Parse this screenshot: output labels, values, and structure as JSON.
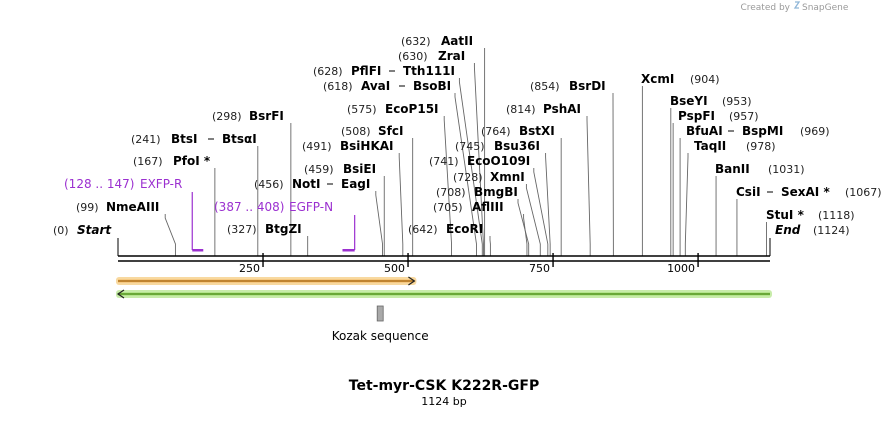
{
  "credit": {
    "text": "Created by",
    "brand": "SnapGene"
  },
  "map": {
    "title": "Tet-myr-CSK K222R-GFP",
    "length_label": "1124 bp",
    "total_bp": 1124,
    "ticks": [
      {
        "bp": 250,
        "label": "250"
      },
      {
        "bp": 500,
        "label": "500"
      },
      {
        "bp": 750,
        "label": "750"
      },
      {
        "bp": 1000,
        "label": "1000"
      }
    ]
  },
  "sites": [
    {
      "id": "start",
      "pos": 0,
      "pos_label": "(0)",
      "name": "Start",
      "italic": true
    },
    {
      "id": "nmeaiii",
      "pos": 99,
      "pos_label": "(99)",
      "name": "NmeAIII"
    },
    {
      "id": "pfoi",
      "pos": 167,
      "pos_label": "(167)",
      "name": "PfoI *"
    },
    {
      "id": "btsi",
      "pos": 241,
      "pos_label": "(241)",
      "name": "BtsI",
      "name2": "BtsαI"
    },
    {
      "id": "bsrfi",
      "pos": 298,
      "pos_label": "(298)",
      "name": "BsrFI"
    },
    {
      "id": "btgzi",
      "pos": 327,
      "pos_label": "(327)",
      "name": "BtgZI"
    },
    {
      "id": "noti",
      "pos": 456,
      "pos_label": "(456)",
      "name": "NotI",
      "name2": "EagI"
    },
    {
      "id": "bsiei",
      "pos": 459,
      "pos_label": "(459)",
      "name": "BsiEI"
    },
    {
      "id": "bsihkai",
      "pos": 491,
      "pos_label": "(491)",
      "name": "BsiHKAI"
    },
    {
      "id": "sfci",
      "pos": 508,
      "pos_label": "(508)",
      "name": "SfcI"
    },
    {
      "id": "ecop15i",
      "pos": 575,
      "pos_label": "(575)",
      "name": "EcoP15I"
    },
    {
      "id": "avai",
      "pos": 618,
      "pos_label": "(618)",
      "name": "AvaI",
      "name2": "BsoBI"
    },
    {
      "id": "pflfi",
      "pos": 628,
      "pos_label": "(628)",
      "name": "PflFI",
      "name2": "Tth111I"
    },
    {
      "id": "zrai",
      "pos": 630,
      "pos_label": "(630)",
      "name": "ZraI"
    },
    {
      "id": "aatii",
      "pos": 632,
      "pos_label": "(632)",
      "name": "AatII"
    },
    {
      "id": "ecori",
      "pos": 642,
      "pos_label": "(642)",
      "name": "EcoRI"
    },
    {
      "id": "afliii",
      "pos": 705,
      "pos_label": "(705)",
      "name": "AflIII"
    },
    {
      "id": "bmgbi",
      "pos": 708,
      "pos_label": "(708)",
      "name": "BmgBI"
    },
    {
      "id": "xmni",
      "pos": 728,
      "pos_label": "(728)",
      "name": "XmnI"
    },
    {
      "id": "ecoo109i",
      "pos": 741,
      "pos_label": "(741)",
      "name": "EcoO109I"
    },
    {
      "id": "bsu36i",
      "pos": 745,
      "pos_label": "(745)",
      "name": "Bsu36I"
    },
    {
      "id": "bstxi",
      "pos": 764,
      "pos_label": "(764)",
      "name": "BstXI"
    },
    {
      "id": "pshai",
      "pos": 814,
      "pos_label": "(814)",
      "name": "PshAI"
    },
    {
      "id": "bsrdi",
      "pos": 854,
      "pos_label": "(854)",
      "name": "BsrDI"
    },
    {
      "id": "xcmi",
      "pos": 904,
      "pos_label": "(904)",
      "name": "XcmI"
    },
    {
      "id": "bseyi",
      "pos": 953,
      "pos_label": "(953)",
      "name": "BseYI"
    },
    {
      "id": "pspfi",
      "pos": 957,
      "pos_label": "(957)",
      "name": "PspFI"
    },
    {
      "id": "bfuai",
      "pos": 969,
      "pos_label": "(969)",
      "name": "BfuAI",
      "name2": "BspMI"
    },
    {
      "id": "taqii",
      "pos": 978,
      "pos_label": "(978)",
      "name": "TaqII"
    },
    {
      "id": "banii",
      "pos": 1031,
      "pos_label": "(1031)",
      "name": "BanII"
    },
    {
      "id": "csii",
      "pos": 1067,
      "pos_label": "(1067)",
      "name": "CsiI",
      "name2": "SexAI *"
    },
    {
      "id": "stui",
      "pos": 1118,
      "pos_label": "(1118)",
      "name": "StuI *"
    },
    {
      "id": "end",
      "pos": 1124,
      "pos_label": "(1124)",
      "name": "End",
      "italic": true
    }
  ],
  "primers": [
    {
      "id": "exfp-r",
      "start": 128,
      "end": 147,
      "range_label": "(128 .. 147)",
      "name": "EXFP-R"
    },
    {
      "id": "egfp-n",
      "start": 387,
      "end": 408,
      "range_label": "(387 .. 408)",
      "name": "EGFP-N"
    }
  ],
  "features": [
    {
      "id": "orange-arrow",
      "start": 0,
      "end": 511,
      "direction": "forward",
      "color": "#f0a030",
      "glow": "#f8d9a0"
    },
    {
      "id": "green-arrow",
      "start": 0,
      "end": 1124,
      "direction": "reverse",
      "color": "#7ccf3a",
      "glow": "#c8ecaa"
    },
    {
      "id": "kozak",
      "pos": 452,
      "name": "Kozak sequence",
      "color": "#a9a9a9"
    }
  ]
}
